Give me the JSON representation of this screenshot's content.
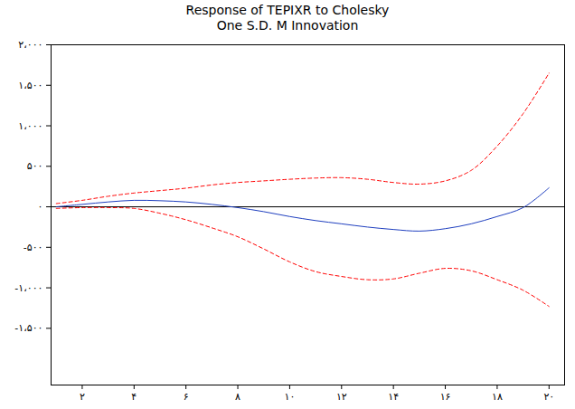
{
  "chart_data": {
    "type": "line",
    "title": "Response of TEPIXR to Cholesky",
    "subtitle": "One S.D. M Innovation",
    "x": [
      1,
      2,
      3,
      4,
      5,
      6,
      7,
      8,
      9,
      10,
      11,
      12,
      13,
      14,
      15,
      16,
      17,
      18,
      19,
      20
    ],
    "series": [
      {
        "color": "#1f3fbf",
        "line_style": "solid",
        "values": [
          0,
          30,
          60,
          80,
          75,
          60,
          30,
          -10,
          -60,
          -120,
          -170,
          -210,
          -250,
          -280,
          -300,
          -270,
          -210,
          -120,
          -10,
          235
        ]
      },
      {
        "color": "#ff0000",
        "line_style": "dashed",
        "values": [
          40,
          80,
          130,
          170,
          200,
          230,
          270,
          300,
          320,
          340,
          355,
          360,
          340,
          300,
          280,
          320,
          450,
          750,
          1150,
          1650
        ]
      },
      {
        "color": "#ff0000",
        "line_style": "dashed",
        "values": [
          -20,
          -10,
          -10,
          -20,
          -80,
          -160,
          -260,
          -370,
          -520,
          -680,
          -800,
          -860,
          -900,
          -890,
          -820,
          -760,
          -790,
          -900,
          -1030,
          -1230
        ]
      }
    ],
    "xlim": [
      0.8,
      20.6
    ],
    "xticks": [
      {
        "value": 2,
        "label": "۲"
      },
      {
        "value": 4,
        "label": "۴"
      },
      {
        "value": 6,
        "label": "۶"
      },
      {
        "value": 8,
        "label": "۸"
      },
      {
        "value": 10,
        "label": "۱۰"
      },
      {
        "value": 12,
        "label": "۱۲"
      },
      {
        "value": 14,
        "label": "۱۴"
      },
      {
        "value": 16,
        "label": "۱۶"
      },
      {
        "value": 18,
        "label": "۱۸"
      },
      {
        "value": 20,
        "label": "۲۰"
      }
    ],
    "ylim": [
      -2200,
      2000
    ],
    "yticks": [
      {
        "value": -1500,
        "label": "-۱،۵۰۰"
      },
      {
        "value": -1000,
        "label": "-۱،۰۰۰"
      },
      {
        "value": -500,
        "label": "-۵۰۰"
      },
      {
        "value": 0,
        "label": "۰"
      },
      {
        "value": 500,
        "label": "۵۰۰"
      },
      {
        "value": 1000,
        "label": "۱،۰۰۰"
      },
      {
        "value": 1500,
        "label": "۱،۵۰۰"
      },
      {
        "value": 2000,
        "label": "۲،۰۰۰"
      }
    ],
    "grid": false
  }
}
